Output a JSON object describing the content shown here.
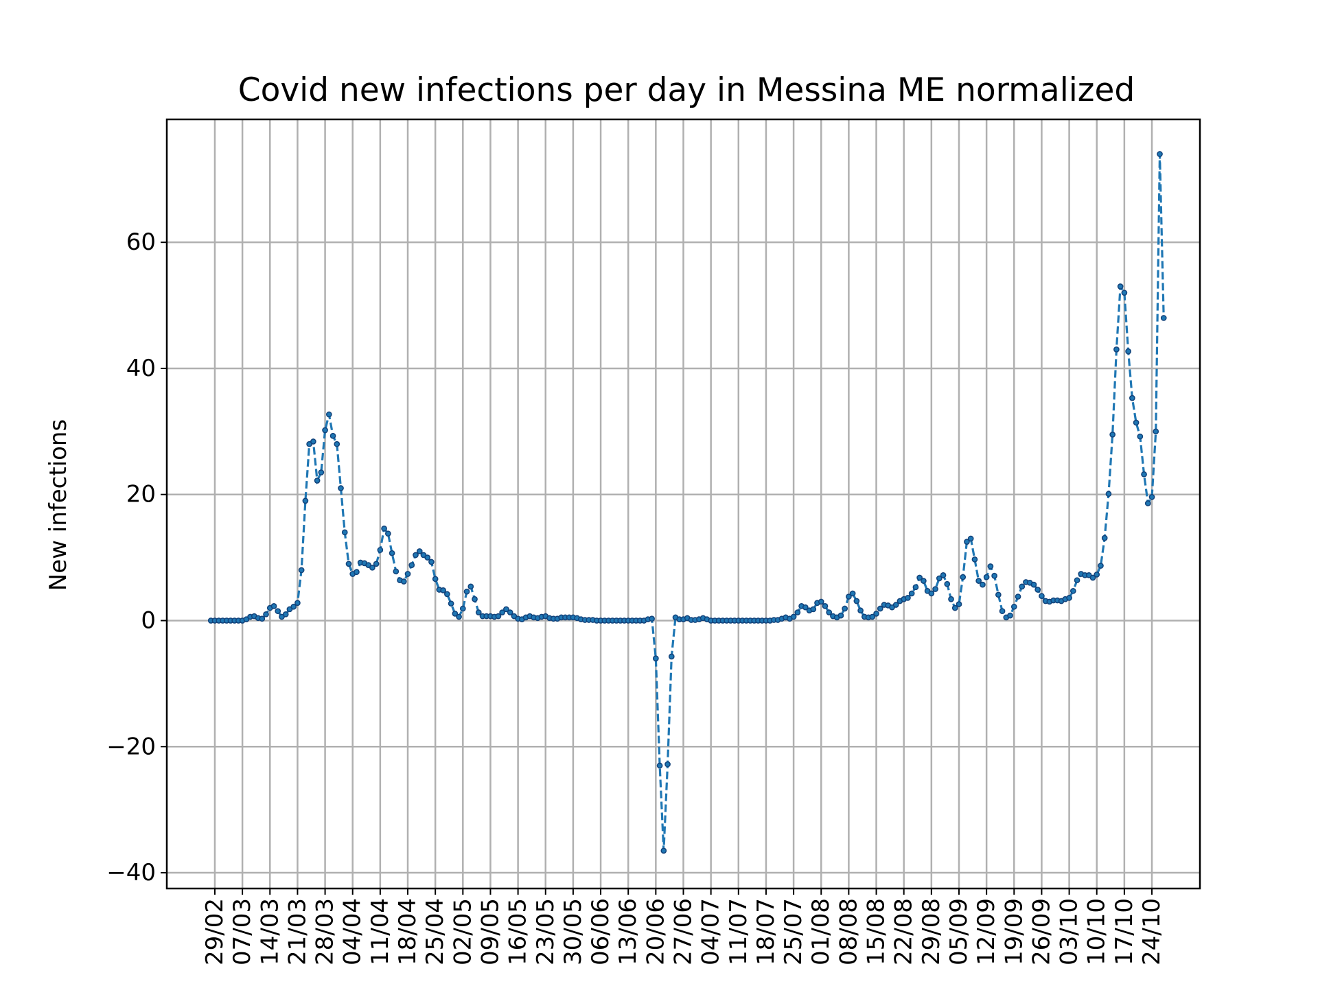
{
  "chart_data": {
    "type": "line",
    "title": "Covid new infections per day in Messina ME normalized",
    "xlabel": "",
    "ylabel": "New infections",
    "y_ticks": [
      -40,
      -20,
      0,
      20,
      40,
      60
    ],
    "y_tick_labels": [
      "−40",
      "−20",
      "0",
      "20",
      "40",
      "60"
    ],
    "ylim": [
      -42.5,
      79.5
    ],
    "x_ticks": [
      {
        "day": 1,
        "label": "29/02"
      },
      {
        "day": 8,
        "label": "07/03"
      },
      {
        "day": 15,
        "label": "14/03"
      },
      {
        "day": 22,
        "label": "21/03"
      },
      {
        "day": 29,
        "label": "28/03"
      },
      {
        "day": 36,
        "label": "04/04"
      },
      {
        "day": 43,
        "label": "11/04"
      },
      {
        "day": 50,
        "label": "18/04"
      },
      {
        "day": 57,
        "label": "25/04"
      },
      {
        "day": 64,
        "label": "02/05"
      },
      {
        "day": 71,
        "label": "09/05"
      },
      {
        "day": 78,
        "label": "16/05"
      },
      {
        "day": 85,
        "label": "23/05"
      },
      {
        "day": 92,
        "label": "30/05"
      },
      {
        "day": 99,
        "label": "06/06"
      },
      {
        "day": 106,
        "label": "13/06"
      },
      {
        "day": 113,
        "label": "20/06"
      },
      {
        "day": 120,
        "label": "27/06"
      },
      {
        "day": 127,
        "label": "04/07"
      },
      {
        "day": 134,
        "label": "11/07"
      },
      {
        "day": 141,
        "label": "18/07"
      },
      {
        "day": 148,
        "label": "25/07"
      },
      {
        "day": 155,
        "label": "01/08"
      },
      {
        "day": 162,
        "label": "08/08"
      },
      {
        "day": 169,
        "label": "15/08"
      },
      {
        "day": 176,
        "label": "22/08"
      },
      {
        "day": 183,
        "label": "29/08"
      },
      {
        "day": 190,
        "label": "05/09"
      },
      {
        "day": 197,
        "label": "12/09"
      },
      {
        "day": 204,
        "label": "19/09"
      },
      {
        "day": 211,
        "label": "26/09"
      },
      {
        "day": 218,
        "label": "03/10"
      },
      {
        "day": 225,
        "label": "10/10"
      },
      {
        "day": 232,
        "label": "17/10"
      },
      {
        "day": 239,
        "label": "24/10"
      }
    ],
    "xlim": [
      -11.2,
      251.2
    ],
    "grid": true,
    "series": [
      {
        "color": "#1f77b4",
        "line_style": "dashed",
        "marker": "dot",
        "values": [
          0,
          0,
          0,
          0,
          0,
          0,
          0,
          0,
          0,
          0.2,
          0.6,
          0.7,
          0.4,
          0.3,
          1,
          2,
          2.3,
          1.5,
          0.6,
          1,
          1.8,
          2.2,
          2.8,
          8,
          19,
          28,
          28.4,
          22.2,
          23.5,
          30.2,
          32.7,
          29.3,
          28,
          21,
          14,
          9,
          7.4,
          7.7,
          9.2,
          9.1,
          8.8,
          8.4,
          9,
          11.2,
          14.6,
          13.8,
          10.7,
          7.8,
          6.4,
          6.2,
          7.4,
          8.8,
          10.4,
          11,
          10.4,
          10,
          9.3,
          6.6,
          4.9,
          4.8,
          4.2,
          2.7,
          1.1,
          0.6,
          1.9,
          4.6,
          5.4,
          3.4,
          1.3,
          0.7,
          0.7,
          0.7,
          0.6,
          0.7,
          1.3,
          1.8,
          1.3,
          0.7,
          0.3,
          0.2,
          0.5,
          0.7,
          0.5,
          0.4,
          0.6,
          0.7,
          0.4,
          0.3,
          0.3,
          0.5,
          0.5,
          0.5,
          0.5,
          0.4,
          0.2,
          0.1,
          0.1,
          0.1,
          0,
          0,
          0,
          0,
          0,
          0,
          0,
          0,
          0,
          0,
          0,
          0,
          0,
          0.2,
          0.3,
          -6,
          -23,
          -36.5,
          -22.8,
          -5.7,
          0.5,
          0.2,
          0.2,
          0.4,
          0.1,
          0.1,
          0.2,
          0.4,
          0.2,
          0,
          0,
          0,
          0,
          0,
          0,
          0,
          0,
          0,
          0,
          0,
          0,
          0,
          0,
          0,
          0,
          0.1,
          0.1,
          0.3,
          0.5,
          0.3,
          0.6,
          1.3,
          2.3,
          2.1,
          1.6,
          1.8,
          2.8,
          3,
          2.3,
          1.3,
          0.7,
          0.5,
          0.8,
          1.9,
          3.8,
          4.3,
          3.1,
          1.6,
          0.6,
          0.5,
          0.6,
          1.1,
          1.9,
          2.5,
          2.4,
          2.1,
          2.5,
          3.1,
          3.4,
          3.6,
          4.3,
          5.3,
          6.8,
          6.3,
          4.7,
          4.3,
          5,
          6.7,
          7.2,
          5.8,
          3.4,
          2,
          2.6,
          6.9,
          12.5,
          13,
          9.7,
          6.3,
          5.7,
          6.9,
          8.6,
          7.1,
          4.1,
          1.5,
          0.5,
          0.8,
          2.2,
          3.8,
          5.4,
          6.1,
          6,
          5.7,
          4.9,
          3.9,
          3.1,
          3,
          3.2,
          3.2,
          3.1,
          3.4,
          3.6,
          4.7,
          6.4,
          7.4,
          7.2,
          7.2,
          6.8,
          7.3,
          8.7,
          13.1,
          20.1,
          29.5,
          43,
          53,
          52,
          42.7,
          35.3,
          31.4,
          29.2,
          23.2,
          18.6,
          19.6,
          30,
          74,
          48
        ]
      }
    ]
  }
}
